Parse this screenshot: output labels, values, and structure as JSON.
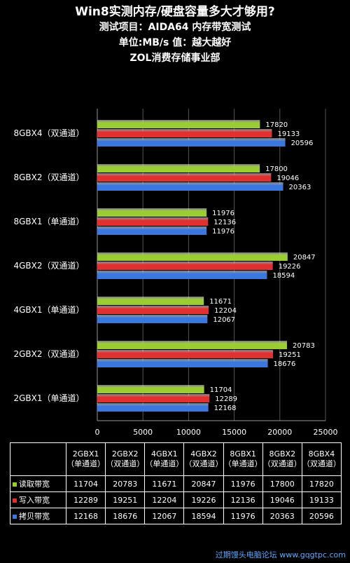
{
  "titles": {
    "line1": "Win8实测内存/硬盘容量多大才够用?",
    "line2": "测试项目：AIDA64    内存带宽测试",
    "line3": "单位:MB/s   值：越大越好",
    "line4": "ZOL消费存储事业部"
  },
  "chart_data": {
    "type": "bar",
    "orientation": "horizontal",
    "categories": [
      "8GBX4（双通道）",
      "8GBX2（双通道）",
      "8GBX1（单通道）",
      "4GBX2（双通道）",
      "4GBX1（单通道）",
      "2GBX2（双通道）",
      "2GBX1（单通道）"
    ],
    "series": [
      {
        "name": "读取带宽",
        "color": "#9acd32",
        "values": [
          17820,
          17800,
          11976,
          20847,
          11671,
          20783,
          11704
        ]
      },
      {
        "name": "写入带宽",
        "color": "#e03030",
        "values": [
          19133,
          19046,
          12136,
          19226,
          12204,
          19251,
          12289
        ]
      },
      {
        "name": "拷贝带宽",
        "color": "#3a78e0",
        "values": [
          20596,
          20363,
          11976,
          18594,
          12067,
          18676,
          12168
        ]
      }
    ],
    "xlim": [
      0,
      25000
    ],
    "xticks": [
      "0",
      "5000",
      "10000",
      "15000",
      "20000",
      "25000"
    ],
    "grid": true
  },
  "table": {
    "columns": [
      {
        "name": "2GBX1",
        "mode": "（单通道）",
        "read": "11704",
        "write": "12289",
        "copy": "12168"
      },
      {
        "name": "2GBX2",
        "mode": "（双通道）",
        "read": "20783",
        "write": "19251",
        "copy": "18676"
      },
      {
        "name": "4GBX1",
        "mode": "（单通道）",
        "read": "11671",
        "write": "12204",
        "copy": "12067"
      },
      {
        "name": "4GBX2",
        "mode": "（双通道）",
        "read": "20847",
        "write": "19226",
        "copy": "18594"
      },
      {
        "name": "8GBX1",
        "mode": "（单通道）",
        "read": "11976",
        "write": "12136",
        "copy": "11976"
      },
      {
        "name": "8GBX2",
        "mode": "（双通道）",
        "read": "17800",
        "write": "19046",
        "copy": "20363"
      },
      {
        "name": "8GBX4",
        "mode": "（双通道）",
        "read": "17820",
        "write": "19133",
        "copy": "20596"
      }
    ],
    "rows": [
      {
        "label": "读取带宽",
        "color": "#9acd32"
      },
      {
        "label": "写入带宽",
        "color": "#e03030"
      },
      {
        "label": "拷贝带宽",
        "color": "#3a78e0"
      }
    ]
  },
  "watermark": "过期馒头电脑论坛 www.gqgtpc.com"
}
